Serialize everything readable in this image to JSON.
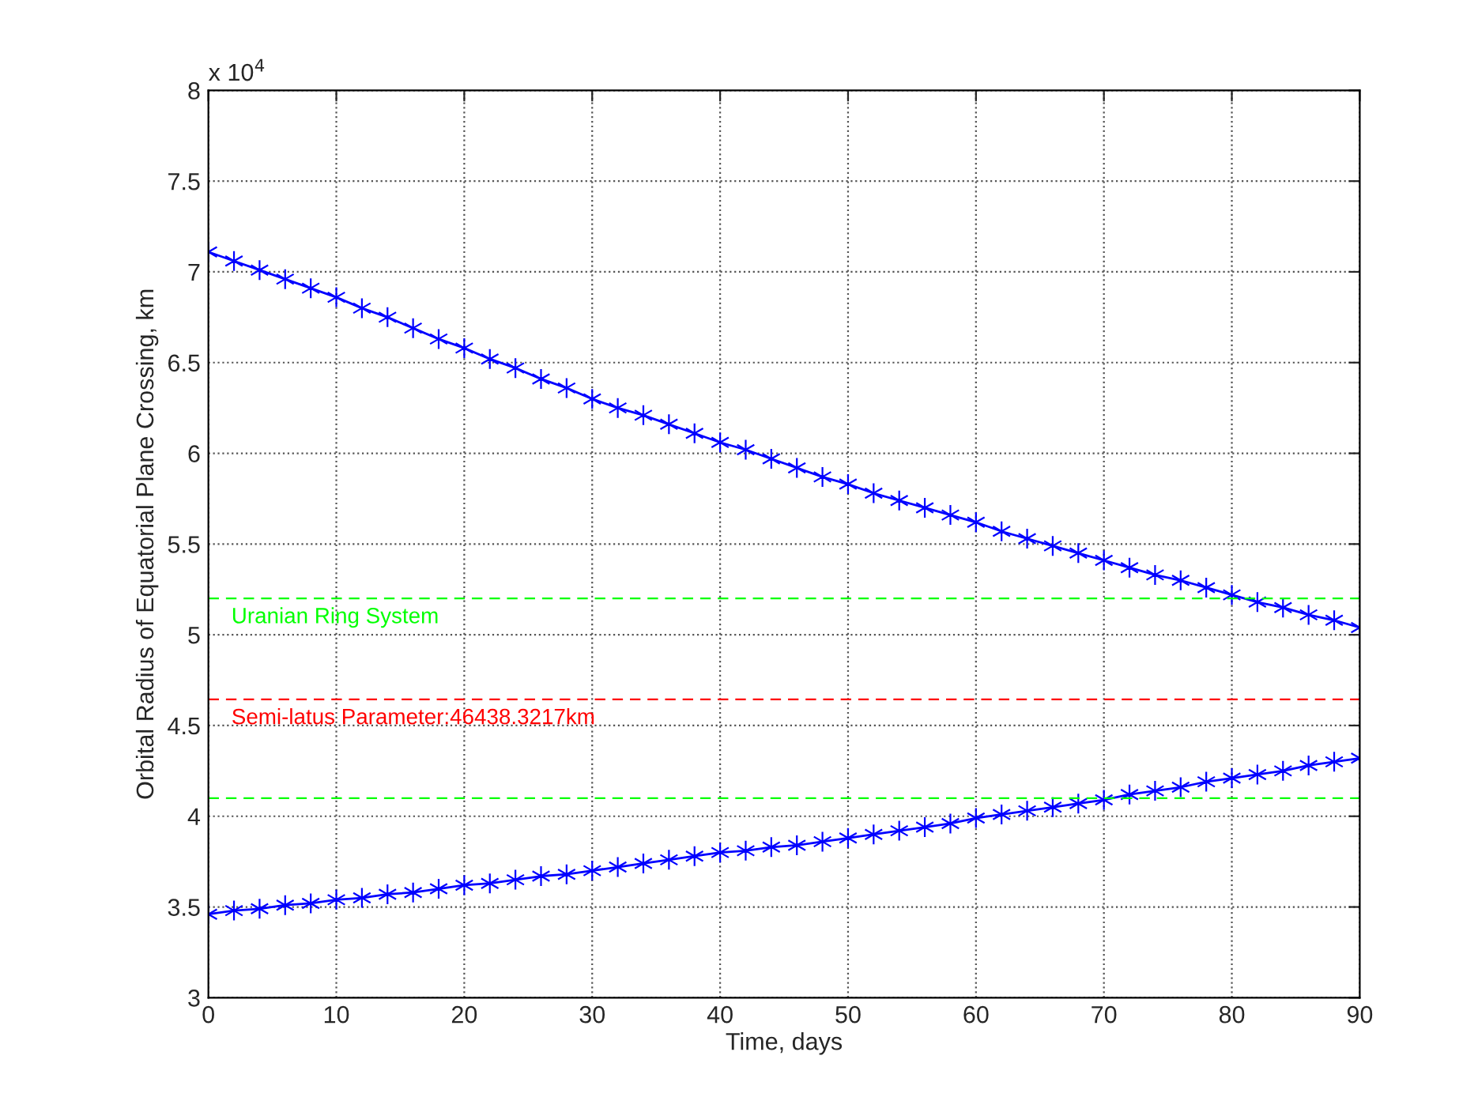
{
  "chart_data": {
    "type": "line",
    "xlabel": "Time, days",
    "ylabel": "Orbital Radius of Equatorial Plane Crossing, km",
    "annotations": [
      "x 10$^{4}$",
      "Semi-latus Parameter:46438.3217km"
    ],
    "x": [
      0,
      2,
      4,
      6,
      8,
      10,
      12,
      14,
      16,
      18,
      20,
      22,
      24,
      26,
      28,
      30,
      32,
      34,
      36,
      38,
      40,
      42,
      44,
      46,
      48,
      50,
      52,
      54,
      56,
      58,
      60,
      62,
      64,
      66,
      68,
      70,
      72,
      74,
      76,
      78,
      80,
      82,
      84,
      86,
      88,
      90
    ],
    "series": [
      {
        "color": "#0000ff",
        "values": [
          7.11,
          7.06,
          7.01,
          6.96,
          6.91,
          6.86,
          6.8,
          6.75,
          6.69,
          6.63,
          6.58,
          6.52,
          6.47,
          6.41,
          6.36,
          6.3,
          6.25,
          6.21,
          6.16,
          6.11,
          6.06,
          6.02,
          5.97,
          5.92,
          5.87,
          5.83,
          5.78,
          5.74,
          5.7,
          5.66,
          5.62,
          5.57,
          5.53,
          5.49,
          5.45,
          5.41,
          5.37,
          5.33,
          5.3,
          5.26,
          5.22,
          5.18,
          5.15,
          5.11,
          5.08,
          5.04
        ]
      },
      {
        "color": "#0000ff",
        "values": [
          3.46,
          3.48,
          3.49,
          3.51,
          3.52,
          3.54,
          3.55,
          3.57,
          3.58,
          3.6,
          3.62,
          3.63,
          3.65,
          3.67,
          3.68,
          3.7,
          3.72,
          3.74,
          3.76,
          3.78,
          3.8,
          3.81,
          3.83,
          3.84,
          3.86,
          3.88,
          3.9,
          3.92,
          3.94,
          3.96,
          3.99,
          4.01,
          4.03,
          4.05,
          4.07,
          4.09,
          4.12,
          4.14,
          4.16,
          4.19,
          4.21,
          4.23,
          4.25,
          4.28,
          4.3,
          4.32
        ]
      }
    ],
    "marker": "cross",
    "line_style": "solid",
    "xlim": [
      0,
      90
    ],
    "xticks": [
      0,
      10,
      20,
      30,
      40,
      50,
      60,
      70,
      80,
      90
    ],
    "ylim": [
      3,
      8
    ],
    "yticks": [
      3,
      3.5,
      4,
      4.5,
      5,
      5.5,
      6,
      6.5,
      7,
      7.5,
      8
    ],
    "grid": true,
    "ref_lines": [
      {
        "axis": "y",
        "value": 5.2,
        "label": "Uranian Ring System",
        "color": "#00ff00",
        "line_style": "dashed"
      },
      {
        "axis": "y",
        "value": 4.64383217,
        "color": "#ff0000",
        "line_style": "dashed"
      },
      {
        "axis": "y",
        "value": 4.1,
        "color": "#00ff00",
        "line_style": "dashed"
      }
    ]
  }
}
